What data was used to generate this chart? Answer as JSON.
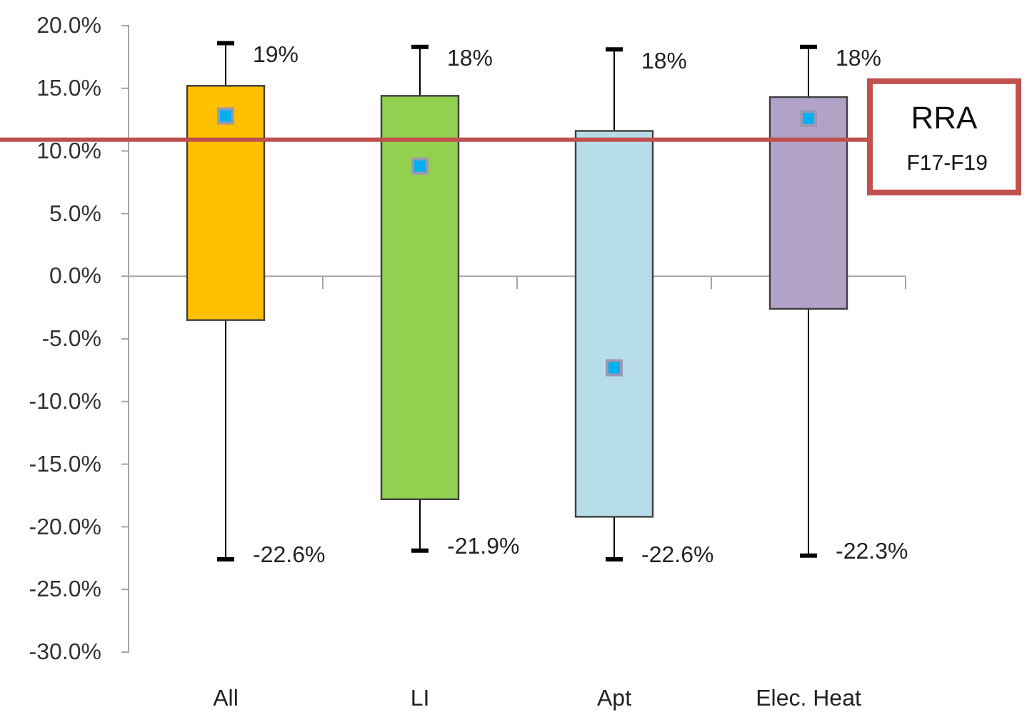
{
  "chart_data": {
    "type": "box",
    "categories": [
      "All",
      "LI",
      "Apt",
      "Elec. Heat"
    ],
    "boxes": [
      {
        "low": -22.6,
        "q1": -3.5,
        "q3": 15.2,
        "high": 18.6,
        "mean": 12.8
      },
      {
        "low": -21.9,
        "q1": -17.8,
        "q3": 14.4,
        "high": 18.3,
        "mean": 8.8
      },
      {
        "low": -22.6,
        "q1": -19.2,
        "q3": 11.6,
        "high": 18.1,
        "mean": -7.3
      },
      {
        "low": -22.3,
        "q1": -2.6,
        "q3": 14.3,
        "high": 18.3,
        "mean": 12.6
      }
    ],
    "colors": [
      "#ffc000",
      "#92d050",
      "#b7dde8",
      "#b3a2c7"
    ],
    "marker": "square",
    "ylim": [
      -30,
      20
    ],
    "yticks": [
      {
        "value": 20,
        "label": "20.0%"
      },
      {
        "value": 15,
        "label": "15.0%"
      },
      {
        "value": 10,
        "label": "10.0%"
      },
      {
        "value": 5,
        "label": "5.0%"
      },
      {
        "value": 0,
        "label": "0.0%"
      },
      {
        "value": -5,
        "label": "-5.0%"
      },
      {
        "value": -10,
        "label": "-10.0%"
      },
      {
        "value": -15,
        "label": "-15.0%"
      },
      {
        "value": -20,
        "label": "-20.0%"
      },
      {
        "value": -25,
        "label": "-25.0%"
      },
      {
        "value": -30,
        "label": "-30.0%"
      }
    ],
    "ref_lines": [
      {
        "axis": "y",
        "value": 10.9,
        "label": "RRA F17-F19",
        "color": "#c0504d"
      }
    ],
    "annotations": [
      {
        "text": "19%",
        "x": "All",
        "y": 18.6
      },
      {
        "text": "18%",
        "x": "LI",
        "y": 18.3
      },
      {
        "text": "18%",
        "x": "Apt",
        "y": 18.1
      },
      {
        "text": "18%",
        "x": "Elec. Heat",
        "y": 18.3
      },
      {
        "text": "-22.6%",
        "x": "All",
        "y": -22.6
      },
      {
        "text": "-21.9%",
        "x": "LI",
        "y": -21.9
      },
      {
        "text": "-22.6%",
        "x": "Apt",
        "y": -22.6
      },
      {
        "text": "-22.3%",
        "x": "Elec. Heat",
        "y": -22.3
      }
    ]
  }
}
